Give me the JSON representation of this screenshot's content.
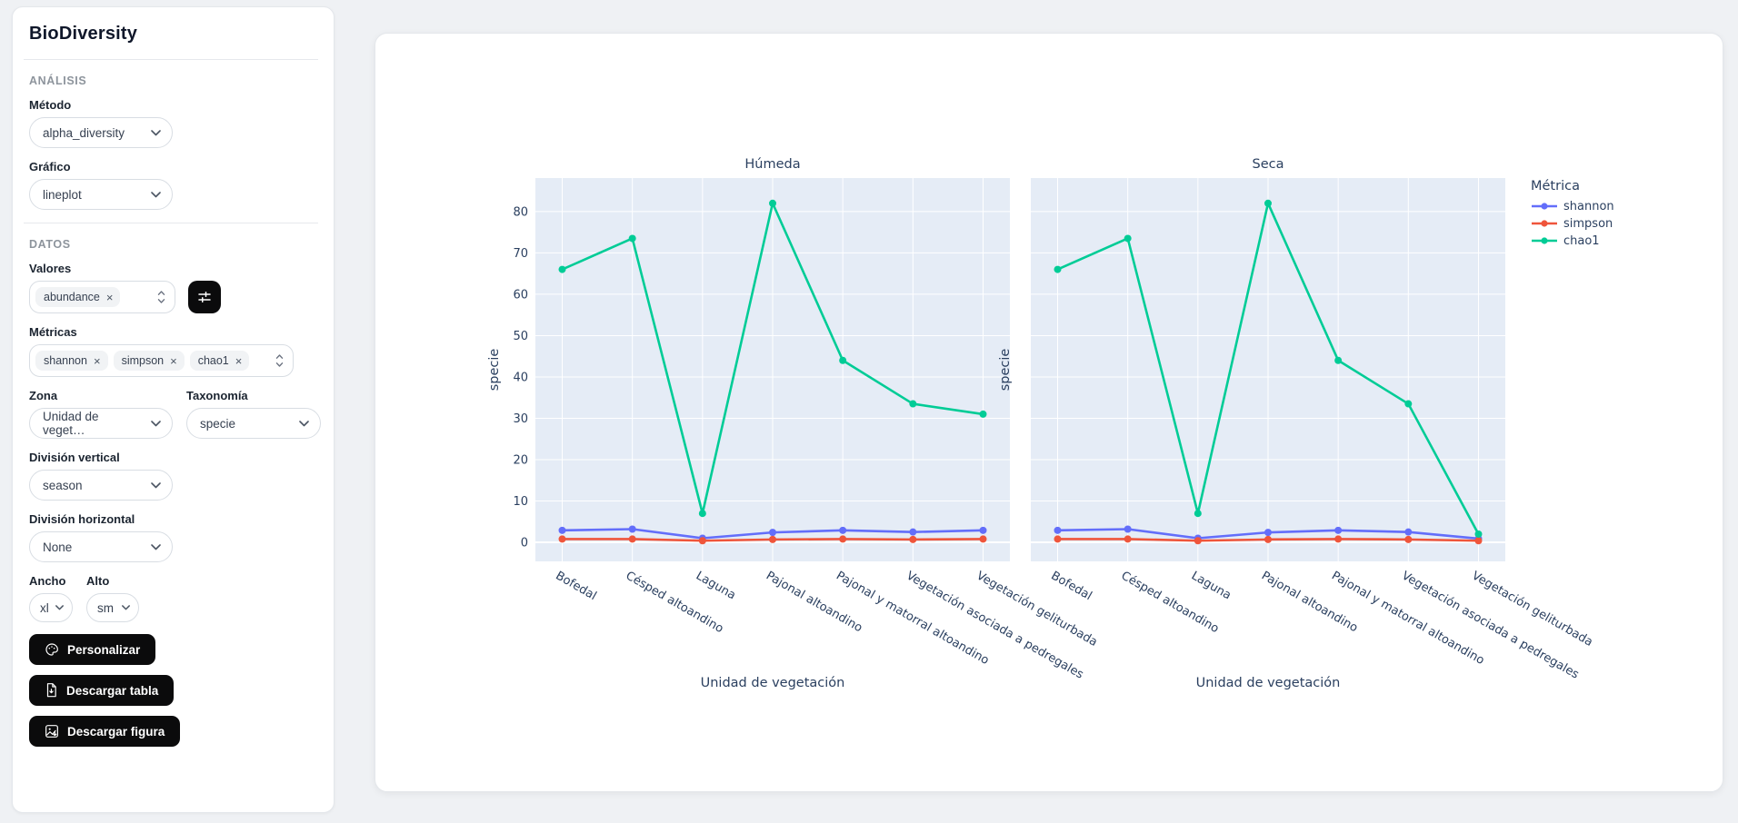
{
  "app": {
    "title": "BioDiversity"
  },
  "sidebar": {
    "sections": {
      "analysis": "ANÁLISIS",
      "data": "DATOS"
    },
    "fields": {
      "metodo": {
        "label": "Método",
        "value": "alpha_diversity"
      },
      "grafico": {
        "label": "Gráfico",
        "value": "lineplot"
      },
      "valores": {
        "label": "Valores",
        "tags": [
          "abundance"
        ]
      },
      "metricas": {
        "label": "Métricas",
        "tags": [
          "shannon",
          "simpson",
          "chao1"
        ]
      },
      "zona": {
        "label": "Zona",
        "value": "Unidad de veget…"
      },
      "taxonomia": {
        "label": "Taxonomía",
        "value": "specie"
      },
      "division_vertical": {
        "label": "División vertical",
        "value": "season"
      },
      "division_horizontal": {
        "label": "División horizontal",
        "value": "None"
      },
      "ancho": {
        "label": "Ancho",
        "value": "xl"
      },
      "alto": {
        "label": "Alto",
        "value": "sm"
      }
    },
    "buttons": {
      "personalizar": "Personalizar",
      "descargar_tabla": "Descargar tabla",
      "descargar_figura": "Descargar figura"
    }
  },
  "icons": {
    "close_glyph": "×",
    "names": [
      "chevron-down-icon",
      "stepper-icon",
      "sliders-icon",
      "palette-icon",
      "file-download-icon",
      "image-download-icon"
    ]
  },
  "colors": {
    "accent_button": "#0b0b0c",
    "tag_bg": "#f1f3f5"
  },
  "chart_data": {
    "type": "line",
    "categories": [
      "Bofedal",
      "Césped altoandino",
      "Laguna",
      "Pajonal altoandino",
      "Pajonal y matorral altoandino",
      "Vegetación asociada a pedregales",
      "Vegetación geliturbada"
    ],
    "facets": [
      {
        "title": "Húmeda",
        "series": [
          {
            "name": "shannon",
            "color": "#636efa",
            "values": [
              2.9,
              3.2,
              1.0,
              2.4,
              2.9,
              2.5,
              2.9
            ]
          },
          {
            "name": "simpson",
            "color": "#ef553b",
            "values": [
              0.8,
              0.8,
              0.4,
              0.7,
              0.8,
              0.7,
              0.8
            ]
          },
          {
            "name": "chao1",
            "color": "#00cc96",
            "values": [
              66,
              73.5,
              7,
              82,
              44,
              33.5,
              31
            ]
          }
        ]
      },
      {
        "title": "Seca",
        "series": [
          {
            "name": "shannon",
            "color": "#636efa",
            "values": [
              2.9,
              3.2,
              1.0,
              2.4,
              2.9,
              2.5,
              0.9
            ]
          },
          {
            "name": "simpson",
            "color": "#ef553b",
            "values": [
              0.8,
              0.8,
              0.4,
              0.7,
              0.8,
              0.7,
              0.4
            ]
          },
          {
            "name": "chao1",
            "color": "#00cc96",
            "values": [
              66,
              73.5,
              7,
              82,
              44,
              33.5,
              2
            ]
          }
        ]
      }
    ],
    "xlabel": "Unidad de vegetación",
    "ylabel": "specie",
    "legend_title": "Métrica",
    "yticks": [
      0,
      10,
      20,
      30,
      40,
      50,
      60,
      70,
      80
    ],
    "ylim": [
      -4.6,
      88.1
    ],
    "grid": true,
    "legend_position": "top-right-outside",
    "plot_bg": "#e5ecf6",
    "grid_color": "#ffffff",
    "text_color": "#2a3f5f"
  }
}
